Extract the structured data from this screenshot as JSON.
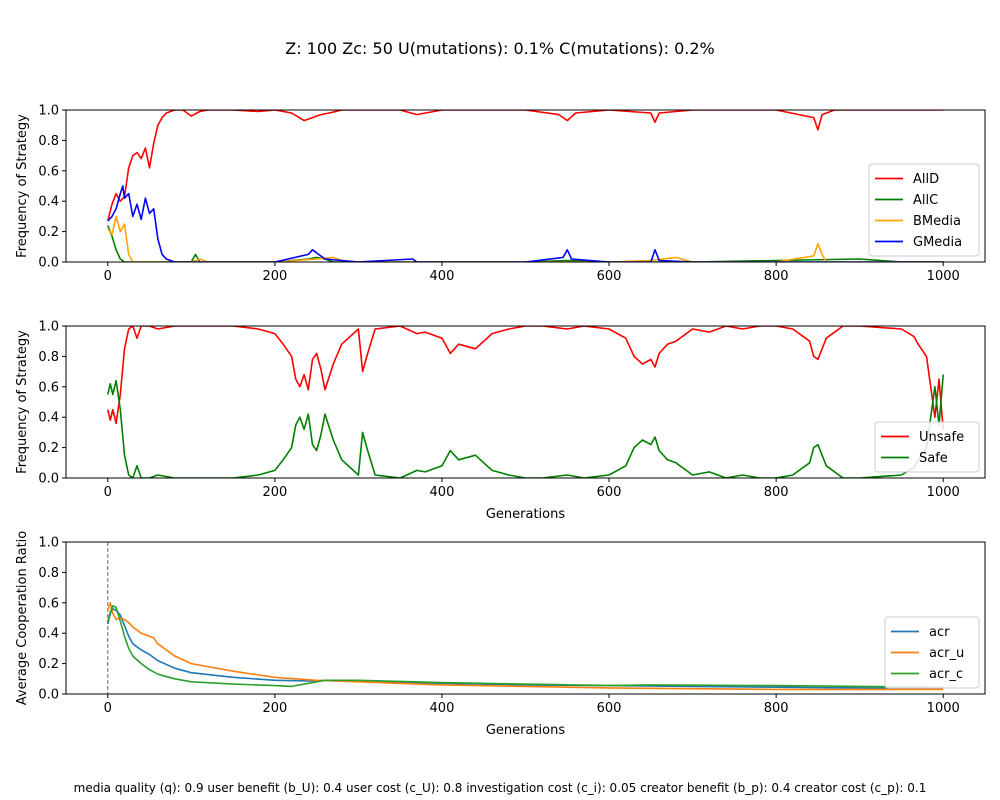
{
  "figure": {
    "suptitle": "Z: 100  Zc: 50  U(mutations): 0.1%  C(mutations): 0.2%",
    "footer": "media quality (q): 0.9  user benefit (b_U): 0.4  user cost (c_U): 0.8  investigation cost (c_i): 0.05  creator benefit (b_p): 0.4  creator cost (c_p): 0.1"
  },
  "chart_data": [
    {
      "type": "line",
      "title": "",
      "xlabel": "",
      "ylabel": "Frequency of Strategy",
      "xlim": [
        -50,
        1050
      ],
      "ylim": [
        0,
        1.0
      ],
      "xticks": [
        0,
        200,
        400,
        600,
        800,
        1000
      ],
      "yticks": [
        0.0,
        0.2,
        0.4,
        0.6,
        0.8,
        1.0
      ],
      "legend_position": "lower-right",
      "grid": false,
      "series": [
        {
          "name": "AllD",
          "color": "#ff0000",
          "x": [
            0,
            5,
            10,
            15,
            20,
            25,
            30,
            35,
            40,
            45,
            50,
            55,
            60,
            65,
            70,
            80,
            90,
            100,
            110,
            120,
            150,
            180,
            200,
            220,
            235,
            245,
            255,
            265,
            280,
            300,
            350,
            370,
            400,
            450,
            500,
            540,
            550,
            560,
            600,
            650,
            655,
            660,
            700,
            800,
            845,
            850,
            855,
            870,
            900,
            950,
            1000
          ],
          "y": [
            0.27,
            0.38,
            0.45,
            0.4,
            0.43,
            0.62,
            0.7,
            0.72,
            0.68,
            0.75,
            0.62,
            0.78,
            0.9,
            0.95,
            0.98,
            1.0,
            1.0,
            0.96,
            0.99,
            1.0,
            1.0,
            0.99,
            1.0,
            0.98,
            0.93,
            0.95,
            0.97,
            0.98,
            1.0,
            1.0,
            1.0,
            0.97,
            1.0,
            1.0,
            1.0,
            0.97,
            0.93,
            0.98,
            1.0,
            0.98,
            0.92,
            0.98,
            1.0,
            1.0,
            0.95,
            0.87,
            0.97,
            1.0,
            1.0,
            1.0,
            1.0
          ]
        },
        {
          "name": "AllC",
          "color": "#008000",
          "x": [
            0,
            5,
            10,
            15,
            20,
            30,
            50,
            100,
            105,
            110,
            200,
            240,
            250,
            260,
            270,
            300,
            400,
            500,
            550,
            600,
            700,
            900,
            950,
            1000
          ],
          "y": [
            0.24,
            0.17,
            0.08,
            0.02,
            0.0,
            0.0,
            0.0,
            0.0,
            0.05,
            0.0,
            0.0,
            0.02,
            0.03,
            0.02,
            0.0,
            0.0,
            0.0,
            0.0,
            0.01,
            0.0,
            0.0,
            0.02,
            0.0,
            0.0
          ]
        },
        {
          "name": "BMedia",
          "color": "#ffa500",
          "x": [
            0,
            5,
            10,
            15,
            20,
            25,
            30,
            40,
            50,
            100,
            110,
            120,
            200,
            250,
            270,
            280,
            290,
            300,
            400,
            500,
            600,
            650,
            680,
            700,
            800,
            845,
            850,
            855,
            860,
            900,
            1000
          ],
          "y": [
            0.22,
            0.18,
            0.3,
            0.2,
            0.25,
            0.05,
            0.0,
            0.0,
            0.0,
            0.0,
            0.02,
            0.0,
            0.0,
            0.02,
            0.03,
            0.01,
            0.0,
            0.0,
            0.0,
            0.0,
            0.0,
            0.01,
            0.03,
            0.0,
            0.0,
            0.04,
            0.12,
            0.05,
            0.0,
            0.0,
            0.0
          ]
        },
        {
          "name": "GMedia",
          "color": "#0000ff",
          "x": [
            0,
            5,
            10,
            15,
            18,
            20,
            25,
            30,
            35,
            40,
            45,
            50,
            55,
            60,
            65,
            70,
            80,
            100,
            200,
            240,
            245,
            250,
            260,
            300,
            365,
            370,
            400,
            500,
            545,
            550,
            555,
            600,
            650,
            655,
            660,
            700,
            800,
            1000
          ],
          "y": [
            0.27,
            0.3,
            0.35,
            0.45,
            0.5,
            0.42,
            0.45,
            0.3,
            0.38,
            0.28,
            0.42,
            0.32,
            0.35,
            0.15,
            0.05,
            0.02,
            0.0,
            0.0,
            0.0,
            0.05,
            0.08,
            0.06,
            0.02,
            0.0,
            0.02,
            0.0,
            0.0,
            0.0,
            0.03,
            0.08,
            0.02,
            0.0,
            0.0,
            0.08,
            0.01,
            0.0,
            0.0,
            0.0
          ]
        }
      ]
    },
    {
      "type": "line",
      "title": "",
      "xlabel": "Generations",
      "ylabel": "Frequency of Strategy",
      "xlim": [
        -50,
        1050
      ],
      "ylim": [
        0,
        1.0
      ],
      "xticks": [
        0,
        200,
        400,
        600,
        800,
        1000
      ],
      "yticks": [
        0.0,
        0.2,
        0.4,
        0.6,
        0.8,
        1.0
      ],
      "legend_position": "lower-right",
      "grid": false,
      "series": [
        {
          "name": "Unsafe",
          "color": "#ff0000",
          "x": [
            0,
            3,
            6,
            10,
            15,
            20,
            25,
            30,
            35,
            40,
            50,
            60,
            80,
            100,
            150,
            180,
            200,
            210,
            220,
            225,
            230,
            235,
            240,
            245,
            250,
            255,
            260,
            270,
            280,
            300,
            305,
            310,
            320,
            350,
            370,
            380,
            400,
            410,
            420,
            440,
            460,
            480,
            500,
            520,
            550,
            570,
            600,
            620,
            630,
            640,
            650,
            655,
            660,
            670,
            680,
            700,
            720,
            740,
            760,
            780,
            800,
            820,
            840,
            845,
            850,
            855,
            860,
            880,
            900,
            950,
            965,
            970,
            980,
            990,
            995,
            1000
          ],
          "y": [
            0.45,
            0.38,
            0.45,
            0.36,
            0.55,
            0.85,
            0.98,
            1.0,
            0.92,
            1.0,
            1.0,
            0.98,
            1.0,
            1.0,
            1.0,
            0.98,
            0.95,
            0.88,
            0.8,
            0.65,
            0.6,
            0.68,
            0.58,
            0.78,
            0.82,
            0.72,
            0.58,
            0.75,
            0.88,
            0.98,
            0.7,
            0.8,
            0.98,
            1.0,
            0.95,
            0.96,
            0.92,
            0.82,
            0.88,
            0.85,
            0.95,
            0.98,
            1.0,
            1.0,
            0.98,
            1.0,
            0.98,
            0.92,
            0.8,
            0.75,
            0.78,
            0.73,
            0.82,
            0.88,
            0.9,
            0.98,
            0.96,
            1.0,
            0.98,
            1.0,
            1.0,
            0.98,
            0.9,
            0.8,
            0.78,
            0.85,
            0.92,
            1.0,
            1.0,
            0.98,
            0.93,
            0.88,
            0.8,
            0.4,
            0.65,
            0.32
          ]
        },
        {
          "name": "Safe",
          "color": "#008000",
          "x": [
            0,
            3,
            6,
            10,
            15,
            20,
            25,
            30,
            35,
            40,
            50,
            60,
            80,
            100,
            150,
            180,
            200,
            210,
            220,
            225,
            230,
            235,
            240,
            245,
            250,
            255,
            260,
            270,
            280,
            300,
            305,
            310,
            320,
            350,
            370,
            380,
            400,
            410,
            420,
            440,
            460,
            480,
            500,
            520,
            550,
            570,
            600,
            620,
            630,
            640,
            650,
            655,
            660,
            670,
            680,
            700,
            720,
            740,
            760,
            780,
            800,
            820,
            840,
            845,
            850,
            855,
            860,
            880,
            900,
            950,
            965,
            970,
            980,
            990,
            995,
            1000
          ],
          "y": [
            0.55,
            0.62,
            0.55,
            0.64,
            0.45,
            0.15,
            0.02,
            0.0,
            0.08,
            0.0,
            0.0,
            0.02,
            0.0,
            0.0,
            0.0,
            0.02,
            0.05,
            0.12,
            0.2,
            0.35,
            0.4,
            0.32,
            0.42,
            0.22,
            0.18,
            0.28,
            0.42,
            0.25,
            0.12,
            0.02,
            0.3,
            0.2,
            0.02,
            0.0,
            0.05,
            0.04,
            0.08,
            0.18,
            0.12,
            0.15,
            0.05,
            0.02,
            0.0,
            0.0,
            0.02,
            0.0,
            0.02,
            0.08,
            0.2,
            0.25,
            0.22,
            0.27,
            0.18,
            0.12,
            0.1,
            0.02,
            0.04,
            0.0,
            0.02,
            0.0,
            0.0,
            0.02,
            0.1,
            0.2,
            0.22,
            0.15,
            0.08,
            0.0,
            0.0,
            0.02,
            0.07,
            0.12,
            0.2,
            0.6,
            0.35,
            0.68
          ]
        }
      ]
    },
    {
      "type": "line",
      "title": "",
      "xlabel": "Generations",
      "ylabel": "Average Cooperation Ratio",
      "xlim": [
        -50,
        1050
      ],
      "ylim": [
        0,
        1.0
      ],
      "xticks": [
        0,
        200,
        400,
        600,
        800,
        1000
      ],
      "yticks": [
        0.0,
        0.2,
        0.4,
        0.6,
        0.8,
        1.0
      ],
      "vline_x": 0,
      "legend_position": "lower-right",
      "grid": false,
      "series": [
        {
          "name": "acr",
          "color": "#1f77b4",
          "x": [
            0,
            3,
            6,
            10,
            15,
            20,
            25,
            30,
            40,
            50,
            60,
            80,
            100,
            150,
            200,
            250,
            260,
            300,
            400,
            500,
            600,
            700,
            800,
            900,
            1000
          ],
          "y": [
            0.46,
            0.53,
            0.56,
            0.55,
            0.52,
            0.45,
            0.38,
            0.33,
            0.29,
            0.26,
            0.22,
            0.17,
            0.14,
            0.11,
            0.09,
            0.085,
            0.09,
            0.085,
            0.07,
            0.06,
            0.055,
            0.05,
            0.045,
            0.04,
            0.035
          ]
        },
        {
          "name": "acr_u",
          "color": "#ff7f0e",
          "x": [
            0,
            3,
            6,
            10,
            15,
            20,
            25,
            30,
            40,
            50,
            55,
            60,
            80,
            100,
            150,
            200,
            250,
            300,
            400,
            500,
            600,
            700,
            800,
            900,
            1000
          ],
          "y": [
            0.55,
            0.6,
            0.53,
            0.49,
            0.5,
            0.49,
            0.47,
            0.44,
            0.4,
            0.38,
            0.37,
            0.33,
            0.25,
            0.2,
            0.15,
            0.11,
            0.09,
            0.08,
            0.06,
            0.05,
            0.04,
            0.035,
            0.03,
            0.03,
            0.03
          ]
        },
        {
          "name": "acr_c",
          "color": "#2ca02c",
          "x": [
            0,
            3,
            6,
            10,
            15,
            20,
            25,
            30,
            40,
            50,
            60,
            80,
            100,
            150,
            200,
            220,
            260,
            300,
            400,
            500,
            600,
            650,
            700,
            800,
            900,
            1000
          ],
          "y": [
            0.47,
            0.54,
            0.58,
            0.57,
            0.48,
            0.38,
            0.3,
            0.25,
            0.2,
            0.16,
            0.13,
            0.1,
            0.08,
            0.065,
            0.055,
            0.05,
            0.09,
            0.09,
            0.075,
            0.065,
            0.055,
            0.06,
            0.058,
            0.055,
            0.05,
            0.045
          ]
        }
      ]
    }
  ]
}
